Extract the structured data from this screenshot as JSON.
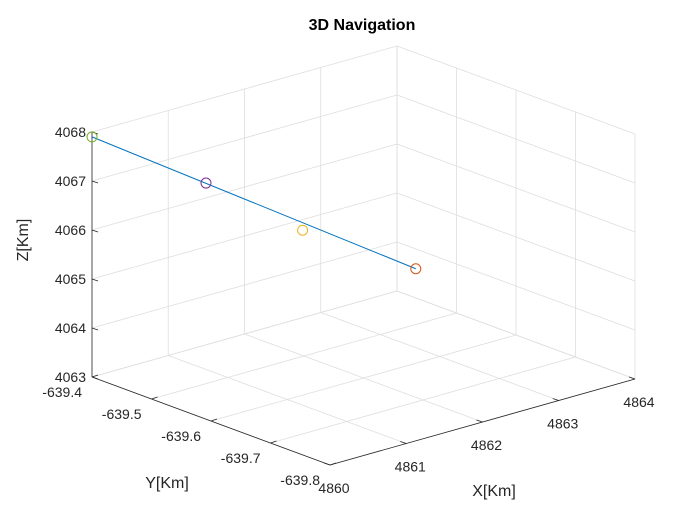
{
  "chart_data": {
    "type": "line3d",
    "title": "3D Navigation",
    "xlabel": "X[Km]",
    "ylabel": "Y[Km]",
    "zlabel": "Z[Km]",
    "grid": true,
    "xlim": [
      4860,
      4864
    ],
    "ylim": [
      -639.8,
      -639.4
    ],
    "zlim": [
      4063,
      4068
    ],
    "xticks": [
      4860,
      4861,
      4862,
      4863,
      4864
    ],
    "xtick_labels": [
      "4860",
      "4861",
      "4862",
      "4863",
      "4864"
    ],
    "yticks": [
      -639.8,
      -639.7,
      -639.6,
      -639.5,
      -639.4
    ],
    "ytick_labels": [
      "-639.8",
      "-639.7",
      "-639.6",
      "-639.5",
      "-639.4"
    ],
    "zticks": [
      4063,
      4064,
      4065,
      4066,
      4067,
      4068
    ],
    "ztick_labels": [
      "4063",
      "4064",
      "4065",
      "4066",
      "4067",
      "4068"
    ],
    "series": [
      {
        "color": "#0072BD",
        "points": [
          {
            "x": 4860.0,
            "y": -639.4,
            "z": 4067.9
          },
          {
            "x": 4863.7,
            "y": -639.47,
            "z": 4063.9
          }
        ]
      }
    ],
    "markers": [
      {
        "x": 4860.0,
        "y": -639.4,
        "z": 4067.9,
        "color": "#77AC30"
      },
      {
        "x": 4861.3,
        "y": -639.425,
        "z": 4066.5,
        "color": "#7E2F8E"
      },
      {
        "x": 4862.45,
        "y": -639.44,
        "z": 4065.1,
        "color": "#EDB120"
      },
      {
        "x": 4863.7,
        "y": -639.47,
        "z": 4063.9,
        "color": "#D95319"
      }
    ]
  }
}
